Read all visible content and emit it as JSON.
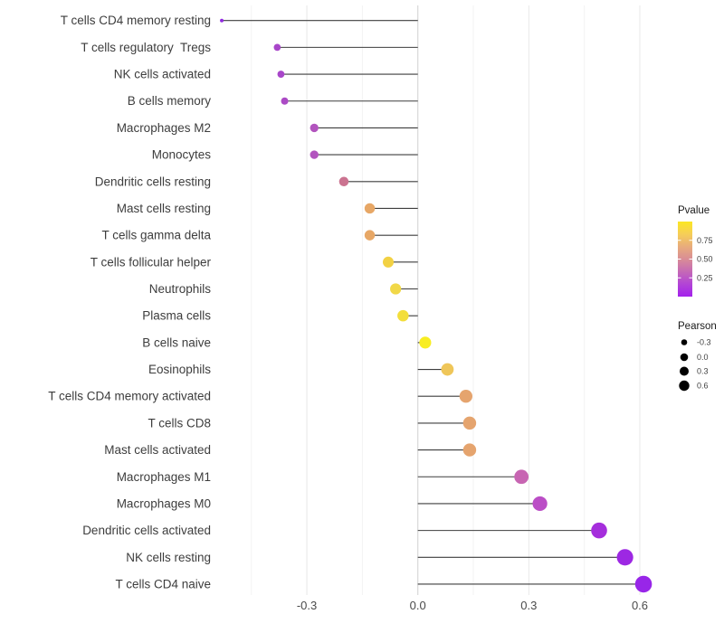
{
  "chart_data": {
    "type": "lollipop",
    "title": "",
    "xlabel": "",
    "ylabel": "",
    "x_ticks": [
      {
        "label": "-0.3",
        "value": -0.3
      },
      {
        "label": "0.0",
        "value": 0.0
      },
      {
        "label": "0.3",
        "value": 0.3
      },
      {
        "label": "0.6",
        "value": 0.6
      }
    ],
    "x_minor_ticks": [
      -0.45,
      -0.15,
      0.15,
      0.45
    ],
    "x_range": [
      -0.55,
      0.66
    ],
    "grid": true,
    "rows": [
      {
        "label": "T cells CD4 memory resting",
        "pearson": -0.53,
        "pvalue": 0.03,
        "color": "#9028E0"
      },
      {
        "label": "T cells regulatory  Tregs",
        "pearson": -0.38,
        "pvalue": 0.12,
        "color": "#A846C9"
      },
      {
        "label": "NK cells activated",
        "pearson": -0.37,
        "pvalue": 0.12,
        "color": "#A846C9"
      },
      {
        "label": "B cells memory",
        "pearson": -0.36,
        "pvalue": 0.14,
        "color": "#AB4AC5"
      },
      {
        "label": "Macrophages M2",
        "pearson": -0.28,
        "pvalue": 0.19,
        "color": "#B254BE"
      },
      {
        "label": "Monocytes",
        "pearson": -0.28,
        "pvalue": 0.19,
        "color": "#B254BE"
      },
      {
        "label": "Dendritic cells resting",
        "pearson": -0.2,
        "pvalue": 0.34,
        "color": "#CB7390"
      },
      {
        "label": "Mast cells resting",
        "pearson": -0.13,
        "pvalue": 0.52,
        "color": "#E7A766"
      },
      {
        "label": "T cells gamma delta",
        "pearson": -0.13,
        "pvalue": 0.52,
        "color": "#E7A766"
      },
      {
        "label": "T cells follicular helper",
        "pearson": -0.08,
        "pvalue": 0.7,
        "color": "#F2D143"
      },
      {
        "label": "Neutrophils",
        "pearson": -0.06,
        "pvalue": 0.76,
        "color": "#F1D848"
      },
      {
        "label": "Plasma cells",
        "pearson": -0.04,
        "pvalue": 0.81,
        "color": "#F3DE3B"
      },
      {
        "label": "B cells naive",
        "pearson": 0.02,
        "pvalue": 0.92,
        "color": "#F8ED22"
      },
      {
        "label": "Eosinophils",
        "pearson": 0.08,
        "pvalue": 0.72,
        "color": "#EFC659"
      },
      {
        "label": "T cells CD4 memory activated",
        "pearson": 0.13,
        "pvalue": 0.5,
        "color": "#E5A46E"
      },
      {
        "label": "T cells CD8",
        "pearson": 0.14,
        "pvalue": 0.5,
        "color": "#E5A46E"
      },
      {
        "label": "Mast cells activated",
        "pearson": 0.14,
        "pvalue": 0.5,
        "color": "#E5A46E"
      },
      {
        "label": "Macrophages M1",
        "pearson": 0.28,
        "pvalue": 0.29,
        "color": "#C765B2"
      },
      {
        "label": "Macrophages M0",
        "pearson": 0.33,
        "pvalue": 0.18,
        "color": "#BB4EC6"
      },
      {
        "label": "Dendritic cells activated",
        "pearson": 0.49,
        "pvalue": 0.06,
        "color": "#A52EDC"
      },
      {
        "label": "NK cells resting",
        "pearson": 0.56,
        "pvalue": 0.04,
        "color": "#9D28E3"
      },
      {
        "label": "T cells CD4 naive",
        "pearson": 0.61,
        "pvalue": 0.02,
        "color": "#9826E8"
      }
    ],
    "legend": {
      "pvalue": {
        "title": "Pvalue",
        "domain": [
          0,
          1
        ],
        "ticks": [
          {
            "label": "0.75",
            "value": 0.75
          },
          {
            "label": "0.50",
            "value": 0.5
          },
          {
            "label": "0.25",
            "value": 0.25
          }
        ],
        "gradient_top_to_bottom": [
          "#FBE723",
          "#F6CE58",
          "#E8AC7C",
          "#D98D96",
          "#C569B6",
          "#B244D6",
          "#A421EC"
        ]
      },
      "pearson": {
        "title": "Pearson",
        "items": [
          {
            "label": "-0.3",
            "value": -0.3
          },
          {
            "label": "0.0",
            "value": 0.0
          },
          {
            "label": "0.3",
            "value": 0.3
          },
          {
            "label": "0.6",
            "value": 0.6
          }
        ]
      }
    },
    "colors": {
      "stem": "#3D3D3D",
      "grid_major": "#E8E8E8",
      "grid_minor": "#F3F3F3",
      "zero_line": "#D6D6D6",
      "axis_text": "#404040",
      "legend_dot": "#000000",
      "background": "#FFFFFF"
    }
  }
}
